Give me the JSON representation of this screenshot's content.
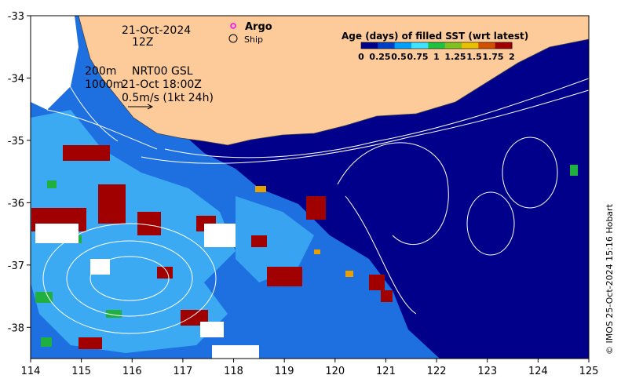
{
  "header": {
    "date": "21-Oct-2024",
    "hour": "12Z"
  },
  "legend": {
    "argo": "Argo",
    "ship": "Ship",
    "colorbar_title": "Age (days) of filled SST (wrt latest)",
    "colorbar_ticks": [
      "0",
      "0.25",
      "0.5",
      "0.75",
      "1",
      "1.25",
      "1.5",
      "1.75",
      "2"
    ],
    "colorbar_colors": [
      "#00008b",
      "#0040c8",
      "#00a0ff",
      "#40e0ff",
      "#20c040",
      "#80c020",
      "#e8c000",
      "#d05000",
      "#a00000"
    ]
  },
  "annotations": {
    "depth_shallow": "200m",
    "depth_deep": "1000m",
    "product": "NRT00 GSL",
    "product_time": "21-Oct 18:00Z",
    "vector_scale": "0.5m/s (1kt 24h)"
  },
  "axes": {
    "x_ticks": [
      "114",
      "115",
      "116",
      "117",
      "118",
      "119",
      "120",
      "121",
      "122",
      "123",
      "124",
      "125"
    ],
    "y_ticks": [
      "-33",
      "-34",
      "-35",
      "-36",
      "-37",
      "-38"
    ]
  },
  "credit": "© IMOS 25-Oct-2024 15:16 Hobart",
  "colors": {
    "land": "#fdcb9a",
    "ocean_deep": "#00008b",
    "ocean_mid": "#1e6fe0",
    "ocean_light": "#3fb0f5",
    "cloud_gap": "#ffffff",
    "old_data": "#a00000",
    "green_patch": "#20b040",
    "argo_marker": "#ff00ff"
  },
  "chart_data": {
    "type": "heatmap",
    "x_range": [
      114,
      125
    ],
    "y_range": [
      -38.5,
      -33
    ],
    "xlabel": "",
    "ylabel": "",
    "colorbar": {
      "min": 0,
      "max": 2,
      "label": "Age (days) of filled SST (wrt latest)"
    }
  }
}
